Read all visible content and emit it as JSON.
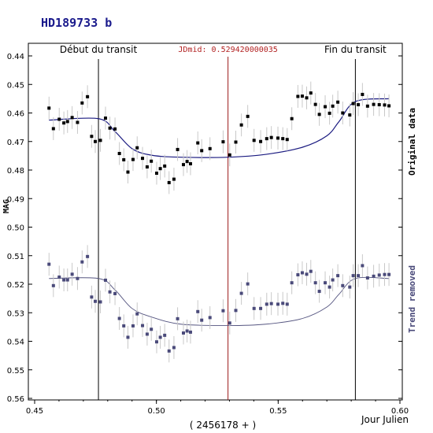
{
  "chart_data": {
    "type": "scatter",
    "title": "HD189733 b",
    "xlabel": "Jour Julien",
    "x_offset_label": "( 2456178 + )",
    "ylabel": "MAG",
    "xlim": [
      0.45,
      0.6
    ],
    "ylim": [
      0.44,
      0.56
    ],
    "y_inverted": true,
    "x_ticks": [
      "0.45",
      "0.50",
      "0.55",
      "0.60"
    ],
    "y_ticks": [
      "0.44",
      "0.45",
      "0.46",
      "0.47",
      "0.48",
      "0.49",
      "0.50",
      "0.51",
      "0.52",
      "0.53",
      "0.54",
      "0.55",
      "0.56"
    ],
    "annotations": {
      "transit_start": {
        "label": "Début du transit",
        "x": 0.4762
      },
      "transit_end": {
        "label": "Fin du transit",
        "x": 0.5817
      },
      "jd_mid": {
        "label": "JDmid: 0.529420000035",
        "x": 0.5294
      }
    },
    "series": [
      {
        "name": "Original data",
        "color": "#000000",
        "fit_color": "#1a1a80",
        "x": [
          0.4559,
          0.4577,
          0.4601,
          0.462,
          0.4635,
          0.4654,
          0.4676,
          0.4695,
          0.4717,
          0.4734,
          0.4749,
          0.477,
          0.4791,
          0.4809,
          0.483,
          0.4848,
          0.4866,
          0.4883,
          0.4904,
          0.4921,
          0.4943,
          0.4962,
          0.4979,
          0.5001,
          0.5016,
          0.5034,
          0.5052,
          0.5072,
          0.5087,
          0.5111,
          0.5126,
          0.514,
          0.517,
          0.5186,
          0.522,
          0.5274,
          0.5301,
          0.5326,
          0.5349,
          0.5375,
          0.5401,
          0.5428,
          0.5453,
          0.5472,
          0.5499,
          0.5519,
          0.5537,
          0.5556,
          0.5581,
          0.5599,
          0.5617,
          0.5634,
          0.5653,
          0.5669,
          0.5693,
          0.5711,
          0.5724,
          0.5745,
          0.5765,
          0.5794,
          0.5808,
          0.5829,
          0.5846,
          0.5867,
          0.5892,
          0.5915,
          0.5937,
          0.5955
        ],
        "y": [
          0.4583,
          0.4655,
          0.4622,
          0.4635,
          0.463,
          0.4616,
          0.4633,
          0.4565,
          0.4543,
          0.4682,
          0.47,
          0.4696,
          0.4618,
          0.4653,
          0.4656,
          0.4742,
          0.4764,
          0.4807,
          0.4763,
          0.4722,
          0.4759,
          0.4789,
          0.4769,
          0.4811,
          0.4795,
          0.4786,
          0.4844,
          0.4832,
          0.4728,
          0.4781,
          0.477,
          0.4778,
          0.4705,
          0.4732,
          0.4725,
          0.4701,
          0.4747,
          0.4702,
          0.4642,
          0.4612,
          0.4696,
          0.47,
          0.469,
          0.4686,
          0.4688,
          0.469,
          0.4693,
          0.462,
          0.4542,
          0.4541,
          0.4547,
          0.453,
          0.457,
          0.4605,
          0.4578,
          0.4601,
          0.4576,
          0.4562,
          0.46,
          0.4607,
          0.4567,
          0.4571,
          0.4535,
          0.4576,
          0.457,
          0.4571,
          0.4572,
          0.4575
        ],
        "fit": {
          "x": [
            0.4559,
            0.4762,
            0.483,
            0.49,
            0.498,
            0.51,
            0.5294,
            0.545,
            0.56,
            0.57,
            0.575,
            0.5817,
            0.5955
          ],
          "y": [
            0.4625,
            0.462,
            0.4665,
            0.4725,
            0.4748,
            0.4755,
            0.4755,
            0.4745,
            0.472,
            0.468,
            0.463,
            0.456,
            0.455
          ]
        }
      },
      {
        "name": "Trend removed",
        "color": "#4a4a7a",
        "fit_color": "#555580",
        "x": [
          0.4559,
          0.4577,
          0.4601,
          0.462,
          0.4635,
          0.4654,
          0.4676,
          0.4695,
          0.4717,
          0.4734,
          0.4749,
          0.477,
          0.4791,
          0.4809,
          0.483,
          0.4848,
          0.4866,
          0.4883,
          0.4904,
          0.4921,
          0.4943,
          0.4962,
          0.4979,
          0.5001,
          0.5016,
          0.5034,
          0.5052,
          0.5072,
          0.5087,
          0.5111,
          0.5126,
          0.514,
          0.517,
          0.5186,
          0.522,
          0.5274,
          0.5301,
          0.5326,
          0.5349,
          0.5375,
          0.5401,
          0.5428,
          0.5453,
          0.5472,
          0.5499,
          0.5519,
          0.5537,
          0.5556,
          0.5581,
          0.5599,
          0.5617,
          0.5634,
          0.5653,
          0.5669,
          0.5693,
          0.5711,
          0.5724,
          0.5745,
          0.5765,
          0.5794,
          0.5808,
          0.5829,
          0.5846,
          0.5867,
          0.5892,
          0.5915,
          0.5937,
          0.5955
        ],
        "y": [
          0.513,
          0.5205,
          0.5175,
          0.5185,
          0.5185,
          0.5165,
          0.518,
          0.5122,
          0.5103,
          0.5245,
          0.526,
          0.5262,
          0.5186,
          0.5227,
          0.5233,
          0.532,
          0.5346,
          0.5386,
          0.5346,
          0.5304,
          0.5345,
          0.5375,
          0.5358,
          0.5402,
          0.5386,
          0.5379,
          0.5434,
          0.5422,
          0.5321,
          0.5371,
          0.5364,
          0.5368,
          0.5296,
          0.5326,
          0.5317,
          0.5293,
          0.5336,
          0.5292,
          0.5232,
          0.5199,
          0.5285,
          0.5285,
          0.527,
          0.5268,
          0.527,
          0.5267,
          0.527,
          0.5195,
          0.5167,
          0.516,
          0.5165,
          0.5155,
          0.5195,
          0.5225,
          0.5195,
          0.521,
          0.5185,
          0.517,
          0.5205,
          0.521,
          0.517,
          0.517,
          0.5135,
          0.5178,
          0.5172,
          0.5168,
          0.5166,
          0.5166
        ],
        "fit": {
          "x": [
            0.4559,
            0.4762,
            0.483,
            0.49,
            0.498,
            0.51,
            0.5294,
            0.545,
            0.56,
            0.57,
            0.575,
            0.5817,
            0.5955
          ],
          "y": [
            0.518,
            0.518,
            0.522,
            0.5285,
            0.5315,
            0.534,
            0.5345,
            0.534,
            0.532,
            0.528,
            0.5235,
            0.518,
            0.518
          ]
        }
      }
    ],
    "error_bar": 0.004
  }
}
